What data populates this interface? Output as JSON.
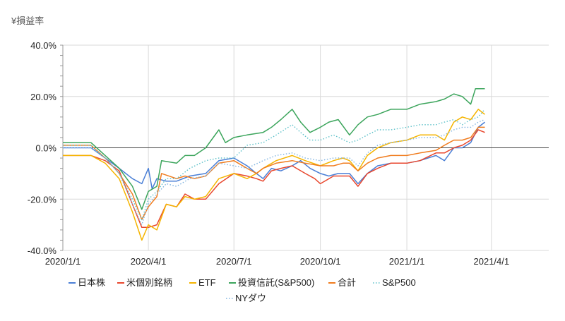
{
  "chart_data": {
    "type": "line",
    "title": "",
    "ylabel": "¥損益率",
    "xlabel": "",
    "ylim": [
      -40,
      40
    ],
    "x_range": [
      "2020-01-01",
      "2021-06-01"
    ],
    "y_ticks": [
      40,
      20,
      0,
      -20,
      -40
    ],
    "y_tick_labels": [
      "40.0%",
      "20.0%",
      "0.0%",
      "-20.0%",
      "-40.0%"
    ],
    "x_ticks": [
      "2020-01-01",
      "2020-04-01",
      "2020-07-01",
      "2020-10-01",
      "2021-01-01",
      "2021-04-01"
    ],
    "x_tick_labels": [
      "2020/1/1",
      "2020/4/1",
      "2020/7/1",
      "2020/10/1",
      "2021/1/1",
      "2021/4/1"
    ],
    "grid": true,
    "legend_position": "bottom",
    "series": [
      {
        "name": "日本株",
        "color": "#4a7fd6",
        "dash": "solid",
        "points": [
          [
            "2020-01-01",
            0
          ],
          [
            "2020-01-31",
            0
          ],
          [
            "2020-02-15",
            -4
          ],
          [
            "2020-03-01",
            -8
          ],
          [
            "2020-03-15",
            -12
          ],
          [
            "2020-03-25",
            -14
          ],
          [
            "2020-04-01",
            -8
          ],
          [
            "2020-04-05",
            -16
          ],
          [
            "2020-04-10",
            -12
          ],
          [
            "2020-04-20",
            -13
          ],
          [
            "2020-05-01",
            -13
          ],
          [
            "2020-05-15",
            -11
          ],
          [
            "2020-06-01",
            -10
          ],
          [
            "2020-06-15",
            -5
          ],
          [
            "2020-07-01",
            -4
          ],
          [
            "2020-07-15",
            -7
          ],
          [
            "2020-07-25",
            -10
          ],
          [
            "2020-08-01",
            -12
          ],
          [
            "2020-08-10",
            -8
          ],
          [
            "2020-08-20",
            -9
          ],
          [
            "2020-09-01",
            -7
          ],
          [
            "2020-09-10",
            -5
          ],
          [
            "2020-09-20",
            -8
          ],
          [
            "2020-10-01",
            -10
          ],
          [
            "2020-10-10",
            -11
          ],
          [
            "2020-10-20",
            -10
          ],
          [
            "2020-11-01",
            -10
          ],
          [
            "2020-11-10",
            -14
          ],
          [
            "2020-11-20",
            -10
          ],
          [
            "2020-12-01",
            -7
          ],
          [
            "2020-12-15",
            -6
          ],
          [
            "2021-01-01",
            -6
          ],
          [
            "2021-01-15",
            -5
          ],
          [
            "2021-02-01",
            -3
          ],
          [
            "2021-02-10",
            -5
          ],
          [
            "2021-02-20",
            0
          ],
          [
            "2021-03-01",
            0
          ],
          [
            "2021-03-10",
            2
          ],
          [
            "2021-03-18",
            8
          ],
          [
            "2021-03-25",
            10
          ]
        ]
      },
      {
        "name": "米個別銘柄",
        "color": "#e8472e",
        "dash": "solid",
        "points": [
          [
            "2020-01-01",
            -3
          ],
          [
            "2020-01-31",
            -3
          ],
          [
            "2020-02-15",
            -5
          ],
          [
            "2020-03-01",
            -9
          ],
          [
            "2020-03-15",
            -22
          ],
          [
            "2020-03-25",
            -31
          ],
          [
            "2020-04-01",
            -31
          ],
          [
            "2020-04-10",
            -30
          ],
          [
            "2020-04-20",
            -22
          ],
          [
            "2020-05-01",
            -23
          ],
          [
            "2020-05-10",
            -18
          ],
          [
            "2020-05-20",
            -20
          ],
          [
            "2020-06-01",
            -20
          ],
          [
            "2020-06-15",
            -14
          ],
          [
            "2020-07-01",
            -10
          ],
          [
            "2020-07-15",
            -11
          ],
          [
            "2020-07-25",
            -12
          ],
          [
            "2020-08-01",
            -13
          ],
          [
            "2020-08-10",
            -9
          ],
          [
            "2020-08-20",
            -8
          ],
          [
            "2020-09-01",
            -7
          ],
          [
            "2020-09-15",
            -10
          ],
          [
            "2020-09-25",
            -12
          ],
          [
            "2020-10-01",
            -14
          ],
          [
            "2020-10-15",
            -11
          ],
          [
            "2020-10-25",
            -11
          ],
          [
            "2020-11-01",
            -11
          ],
          [
            "2020-11-10",
            -15
          ],
          [
            "2020-11-20",
            -10
          ],
          [
            "2020-12-01",
            -8
          ],
          [
            "2020-12-15",
            -6
          ],
          [
            "2021-01-01",
            -6
          ],
          [
            "2021-01-15",
            -5
          ],
          [
            "2021-02-01",
            -2
          ],
          [
            "2021-02-10",
            -2
          ],
          [
            "2021-02-20",
            0
          ],
          [
            "2021-03-01",
            1
          ],
          [
            "2021-03-10",
            3
          ],
          [
            "2021-03-18",
            7
          ],
          [
            "2021-03-25",
            6
          ]
        ]
      },
      {
        "name": "ETF",
        "color": "#f5b400",
        "dash": "solid",
        "points": [
          [
            "2020-01-01",
            -3
          ],
          [
            "2020-01-31",
            -3
          ],
          [
            "2020-02-15",
            -6
          ],
          [
            "2020-03-01",
            -12
          ],
          [
            "2020-03-15",
            -25
          ],
          [
            "2020-03-25",
            -36
          ],
          [
            "2020-04-01",
            -30
          ],
          [
            "2020-04-10",
            -32
          ],
          [
            "2020-04-20",
            -22
          ],
          [
            "2020-05-01",
            -23
          ],
          [
            "2020-05-10",
            -19
          ],
          [
            "2020-05-20",
            -20
          ],
          [
            "2020-06-01",
            -19
          ],
          [
            "2020-06-15",
            -12
          ],
          [
            "2020-07-01",
            -10
          ],
          [
            "2020-07-15",
            -12
          ],
          [
            "2020-07-25",
            -10
          ],
          [
            "2020-08-01",
            -8
          ],
          [
            "2020-08-15",
            -5
          ],
          [
            "2020-09-01",
            -3
          ],
          [
            "2020-09-15",
            -5
          ],
          [
            "2020-10-01",
            -7
          ],
          [
            "2020-10-15",
            -5
          ],
          [
            "2020-10-25",
            -4
          ],
          [
            "2020-11-01",
            -5
          ],
          [
            "2020-11-10",
            -9
          ],
          [
            "2020-11-20",
            -3
          ],
          [
            "2020-12-01",
            0
          ],
          [
            "2020-12-15",
            2
          ],
          [
            "2021-01-01",
            3
          ],
          [
            "2021-01-15",
            5
          ],
          [
            "2021-02-01",
            5
          ],
          [
            "2021-02-10",
            3
          ],
          [
            "2021-02-20",
            10
          ],
          [
            "2021-03-01",
            12
          ],
          [
            "2021-03-10",
            11
          ],
          [
            "2021-03-18",
            15
          ],
          [
            "2021-03-25",
            13
          ]
        ]
      },
      {
        "name": "投資信託(S&P500)",
        "color": "#3ca55c",
        "dash": "solid",
        "points": [
          [
            "2020-01-01",
            2
          ],
          [
            "2020-01-31",
            2
          ],
          [
            "2020-02-15",
            -3
          ],
          [
            "2020-03-01",
            -8
          ],
          [
            "2020-03-15",
            -15
          ],
          [
            "2020-03-25",
            -24
          ],
          [
            "2020-04-01",
            -17
          ],
          [
            "2020-04-10",
            -15
          ],
          [
            "2020-04-15",
            -5
          ],
          [
            "2020-05-01",
            -6
          ],
          [
            "2020-05-10",
            -3
          ],
          [
            "2020-05-20",
            -3
          ],
          [
            "2020-06-01",
            0
          ],
          [
            "2020-06-15",
            7
          ],
          [
            "2020-06-22",
            2
          ],
          [
            "2020-07-01",
            4
          ],
          [
            "2020-07-15",
            5
          ],
          [
            "2020-08-01",
            6
          ],
          [
            "2020-08-10",
            8
          ],
          [
            "2020-08-20",
            11
          ],
          [
            "2020-09-01",
            15
          ],
          [
            "2020-09-10",
            10
          ],
          [
            "2020-09-20",
            6
          ],
          [
            "2020-10-01",
            8
          ],
          [
            "2020-10-10",
            10
          ],
          [
            "2020-10-20",
            11
          ],
          [
            "2020-11-01",
            5
          ],
          [
            "2020-11-10",
            9
          ],
          [
            "2020-11-20",
            12
          ],
          [
            "2020-12-01",
            13
          ],
          [
            "2020-12-15",
            15
          ],
          [
            "2021-01-01",
            15
          ],
          [
            "2021-01-15",
            17
          ],
          [
            "2021-02-01",
            18
          ],
          [
            "2021-02-10",
            19
          ],
          [
            "2021-02-20",
            21
          ],
          [
            "2021-03-01",
            20
          ],
          [
            "2021-03-10",
            17
          ],
          [
            "2021-03-15",
            23
          ],
          [
            "2021-03-25",
            23
          ]
        ]
      },
      {
        "name": "合計",
        "color": "#f07c1e",
        "dash": "solid",
        "points": [
          [
            "2020-01-01",
            1
          ],
          [
            "2020-01-31",
            1
          ],
          [
            "2020-02-15",
            -4
          ],
          [
            "2020-03-01",
            -10
          ],
          [
            "2020-03-15",
            -18
          ],
          [
            "2020-03-25",
            -28
          ],
          [
            "2020-04-01",
            -23
          ],
          [
            "2020-04-10",
            -19
          ],
          [
            "2020-04-15",
            -10
          ],
          [
            "2020-05-01",
            -12
          ],
          [
            "2020-05-10",
            -11
          ],
          [
            "2020-05-20",
            -12
          ],
          [
            "2020-06-01",
            -11
          ],
          [
            "2020-06-15",
            -6
          ],
          [
            "2020-07-01",
            -5
          ],
          [
            "2020-07-15",
            -8
          ],
          [
            "2020-07-25",
            -10
          ],
          [
            "2020-08-01",
            -8
          ],
          [
            "2020-08-15",
            -6
          ],
          [
            "2020-09-01",
            -5
          ],
          [
            "2020-09-15",
            -6
          ],
          [
            "2020-10-01",
            -7
          ],
          [
            "2020-10-15",
            -7
          ],
          [
            "2020-10-25",
            -6
          ],
          [
            "2020-11-01",
            -6
          ],
          [
            "2020-11-10",
            -9
          ],
          [
            "2020-11-20",
            -6
          ],
          [
            "2020-12-01",
            -4
          ],
          [
            "2020-12-15",
            -3
          ],
          [
            "2021-01-01",
            -3
          ],
          [
            "2021-01-15",
            -2
          ],
          [
            "2021-02-01",
            -1
          ],
          [
            "2021-02-10",
            1
          ],
          [
            "2021-02-20",
            3
          ],
          [
            "2021-03-01",
            3
          ],
          [
            "2021-03-10",
            4
          ],
          [
            "2021-03-18",
            8
          ],
          [
            "2021-03-25",
            8
          ]
        ]
      },
      {
        "name": "S&P500",
        "color": "#5bc0c8",
        "dash": "dotted",
        "points": [
          [
            "2020-01-01",
            1
          ],
          [
            "2020-01-31",
            1
          ],
          [
            "2020-02-15",
            -4
          ],
          [
            "2020-03-01",
            -10
          ],
          [
            "2020-03-15",
            -20
          ],
          [
            "2020-03-25",
            -28
          ],
          [
            "2020-04-01",
            -20
          ],
          [
            "2020-04-10",
            -17
          ],
          [
            "2020-04-20",
            -12
          ],
          [
            "2020-05-01",
            -12
          ],
          [
            "2020-05-15",
            -8
          ],
          [
            "2020-06-01",
            -5
          ],
          [
            "2020-06-15",
            -4
          ],
          [
            "2020-07-01",
            -4
          ],
          [
            "2020-07-15",
            1
          ],
          [
            "2020-08-01",
            2
          ],
          [
            "2020-08-15",
            5
          ],
          [
            "2020-09-01",
            9
          ],
          [
            "2020-09-10",
            6
          ],
          [
            "2020-09-20",
            3
          ],
          [
            "2020-10-01",
            3
          ],
          [
            "2020-10-15",
            5
          ],
          [
            "2020-11-01",
            2
          ],
          [
            "2020-11-10",
            3
          ],
          [
            "2020-11-20",
            5
          ],
          [
            "2020-12-01",
            7
          ],
          [
            "2020-12-15",
            7
          ],
          [
            "2021-01-01",
            8
          ],
          [
            "2021-01-15",
            9
          ],
          [
            "2021-02-01",
            9
          ],
          [
            "2021-02-10",
            10
          ],
          [
            "2021-02-20",
            11
          ],
          [
            "2021-03-01",
            9
          ],
          [
            "2021-03-10",
            11
          ],
          [
            "2021-03-18",
            12
          ],
          [
            "2021-03-25",
            15
          ]
        ]
      },
      {
        "name": "NYダウ",
        "color": "#7fb3e0",
        "dash": "dotted",
        "points": [
          [
            "2020-01-01",
            0
          ],
          [
            "2020-01-31",
            0
          ],
          [
            "2020-02-15",
            -4
          ],
          [
            "2020-03-01",
            -10
          ],
          [
            "2020-03-15",
            -22
          ],
          [
            "2020-03-25",
            -30
          ],
          [
            "2020-04-01",
            -22
          ],
          [
            "2020-04-10",
            -18
          ],
          [
            "2020-04-20",
            -14
          ],
          [
            "2020-05-01",
            -15
          ],
          [
            "2020-05-15",
            -12
          ],
          [
            "2020-06-01",
            -11
          ],
          [
            "2020-06-15",
            -6
          ],
          [
            "2020-07-01",
            -7
          ],
          [
            "2020-07-15",
            -8
          ],
          [
            "2020-08-01",
            -5
          ],
          [
            "2020-08-15",
            -3
          ],
          [
            "2020-09-01",
            -2
          ],
          [
            "2020-09-15",
            -4
          ],
          [
            "2020-10-01",
            -5
          ],
          [
            "2020-10-15",
            -4
          ],
          [
            "2020-11-01",
            -4
          ],
          [
            "2020-11-10",
            -7
          ],
          [
            "2020-11-20",
            -2
          ],
          [
            "2020-12-01",
            1
          ],
          [
            "2020-12-15",
            2
          ],
          [
            "2021-01-01",
            3
          ],
          [
            "2021-01-15",
            4
          ],
          [
            "2021-02-01",
            4
          ],
          [
            "2021-02-10",
            5
          ],
          [
            "2021-02-20",
            7
          ],
          [
            "2021-03-01",
            8
          ],
          [
            "2021-03-10",
            8
          ],
          [
            "2021-03-18",
            10
          ],
          [
            "2021-03-25",
            11
          ]
        ]
      }
    ]
  }
}
